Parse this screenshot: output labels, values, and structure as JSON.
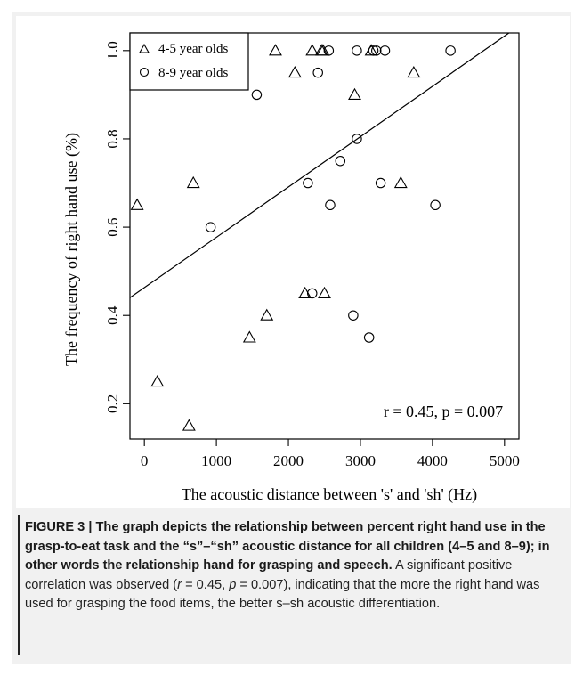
{
  "figure": {
    "caption_label": "FIGURE 3 | ",
    "caption_title": "The graph depicts the relationship between percent right hand use in the grasp-to-eat task and the “s”–“sh” acoustic distance for all children (4–5 and 8–9); in other words the relationship hand for grasping and speech.",
    "caption_body_1": " A significant positive correlation was observed (",
    "caption_r_sym": "r",
    "caption_r_val": " = 0.45, ",
    "caption_p_sym": "p",
    "caption_body_2": " = 0.007), indicating that the more the right hand was used for grasping the food items, the better s–sh acoustic differentiation."
  },
  "chart_data": {
    "type": "scatter",
    "title": "",
    "xlabel": "The acoustic distance between 's' and 'sh' (Hz)",
    "ylabel": "The frequency of right hand use (%)",
    "xlim": [
      -200,
      5200
    ],
    "ylim": [
      0.12,
      1.04
    ],
    "xticks": [
      0,
      1000,
      2000,
      3000,
      4000,
      5000
    ],
    "yticks": [
      0.2,
      0.4,
      0.6,
      0.8,
      1.0
    ],
    "xtick_labels": [
      "0",
      "1000",
      "2000",
      "3000",
      "4000",
      "5000"
    ],
    "ytick_labels": [
      "0.2",
      "0.4",
      "0.6",
      "0.8",
      "1.0"
    ],
    "grid": false,
    "legend": "top-left",
    "annotation": "r = 0.45, p = 0.007",
    "fit_line": {
      "intercept": 0.463,
      "slope": 0.000114
    },
    "series": [
      {
        "name": "4-5 year olds",
        "marker": "triangle",
        "points": [
          [
            -100,
            0.65
          ],
          [
            180,
            0.25
          ],
          [
            620,
            0.15
          ],
          [
            680,
            0.7
          ],
          [
            1460,
            0.35
          ],
          [
            1700,
            0.4
          ],
          [
            1820,
            1.0
          ],
          [
            2090,
            0.95
          ],
          [
            2230,
            0.45
          ],
          [
            2330,
            1.0
          ],
          [
            2460,
            1.0
          ],
          [
            2480,
            1.0
          ],
          [
            2500,
            0.45
          ],
          [
            2920,
            0.9
          ],
          [
            3150,
            1.0
          ],
          [
            3560,
            0.7
          ],
          [
            3740,
            0.95
          ]
        ]
      },
      {
        "name": "8-9 year olds",
        "marker": "circle",
        "points": [
          [
            920,
            0.6
          ],
          [
            1560,
            0.9
          ],
          [
            2270,
            0.7
          ],
          [
            2330,
            0.45
          ],
          [
            2410,
            0.95
          ],
          [
            2560,
            1.0
          ],
          [
            2580,
            0.65
          ],
          [
            2720,
            0.75
          ],
          [
            2900,
            0.4
          ],
          [
            2950,
            0.8
          ],
          [
            2950,
            1.0
          ],
          [
            3120,
            0.35
          ],
          [
            3180,
            1.0
          ],
          [
            3220,
            1.0
          ],
          [
            3280,
            0.7
          ],
          [
            3340,
            1.0
          ],
          [
            4040,
            0.65
          ],
          [
            4250,
            1.0
          ]
        ]
      }
    ]
  }
}
